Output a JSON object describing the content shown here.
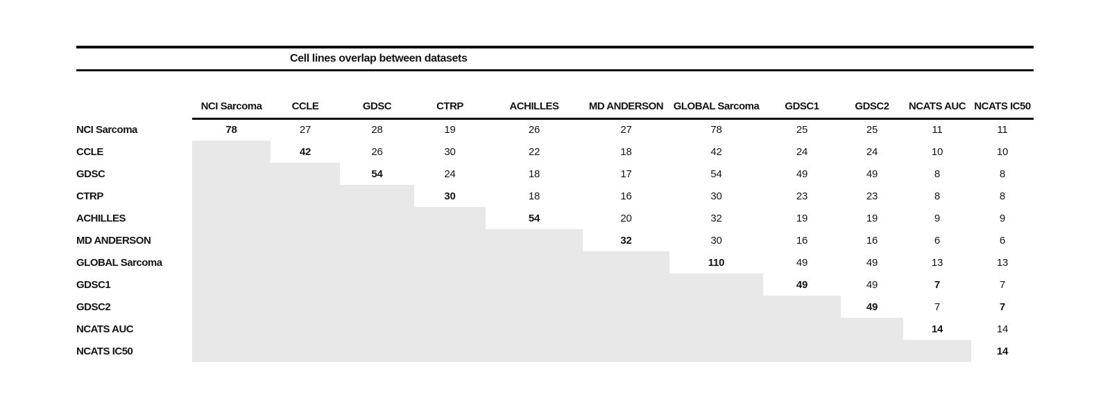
{
  "title": "Cell lines overlap between datasets",
  "colors": {
    "shade": "#e8e8e8",
    "rule": "#0d0d0d",
    "text": "#141414",
    "background": "#ffffff"
  },
  "chart_data": {
    "type": "table",
    "title": "Cell lines overlap between datasets",
    "columns": [
      "NCI Sarcoma",
      "CCLE",
      "GDSC",
      "CTRP",
      "ACHILLES",
      "MD ANDERSON",
      "GLOBAL Sarcoma",
      "GDSC1",
      "GDSC2",
      "NCATS AUC",
      "NCATS IC50"
    ],
    "row_labels": [
      "NCI Sarcoma",
      "CCLE",
      "GDSC",
      "CTRP",
      "ACHILLES",
      "MD ANDERSON",
      "GLOBAL Sarcoma",
      "GDSC1",
      "GDSC2",
      "NCATS AUC",
      "NCATS IC50"
    ],
    "matrix": [
      [
        78,
        27,
        28,
        19,
        26,
        27,
        78,
        25,
        25,
        11,
        11
      ],
      [
        null,
        42,
        26,
        30,
        22,
        18,
        42,
        24,
        24,
        10,
        10
      ],
      [
        null,
        null,
        54,
        24,
        18,
        17,
        54,
        49,
        49,
        8,
        8
      ],
      [
        null,
        null,
        null,
        30,
        18,
        16,
        30,
        23,
        23,
        8,
        8
      ],
      [
        null,
        null,
        null,
        null,
        54,
        20,
        32,
        19,
        19,
        9,
        9
      ],
      [
        null,
        null,
        null,
        null,
        null,
        32,
        30,
        16,
        16,
        6,
        6
      ],
      [
        null,
        null,
        null,
        null,
        null,
        null,
        110,
        49,
        49,
        13,
        13
      ],
      [
        null,
        null,
        null,
        null,
        null,
        null,
        null,
        49,
        49,
        7,
        7
      ],
      [
        null,
        null,
        null,
        null,
        null,
        null,
        null,
        null,
        49,
        7,
        7
      ],
      [
        null,
        null,
        null,
        null,
        null,
        null,
        null,
        null,
        null,
        14,
        14
      ],
      [
        null,
        null,
        null,
        null,
        null,
        null,
        null,
        null,
        null,
        null,
        14
      ]
    ],
    "bold_cells": [
      [
        0,
        0
      ],
      [
        1,
        1
      ],
      [
        2,
        2
      ],
      [
        3,
        3
      ],
      [
        4,
        4
      ],
      [
        5,
        5
      ],
      [
        6,
        6
      ],
      [
        7,
        7
      ],
      [
        7,
        9
      ],
      [
        8,
        8
      ],
      [
        8,
        10
      ],
      [
        9,
        9
      ],
      [
        10,
        10
      ]
    ],
    "layout_hints": {
      "lower_triangle": "shaded",
      "upper_triangle": "values",
      "diagonal": "bold"
    }
  }
}
